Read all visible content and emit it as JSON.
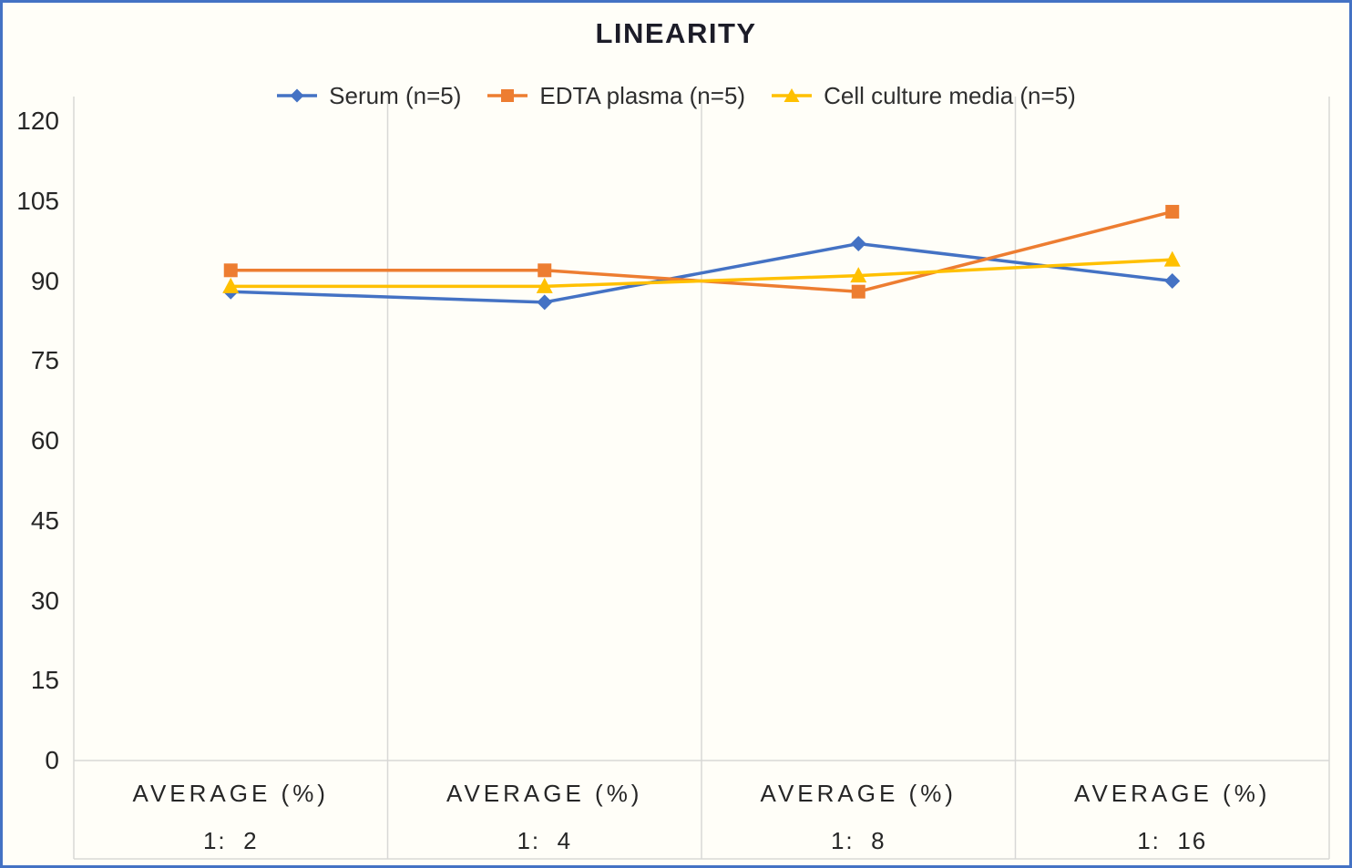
{
  "chart_data": {
    "type": "line",
    "title": "LINEARITY",
    "categories": [
      {
        "line1": "AVERAGE (%)",
        "line2": "1:  2"
      },
      {
        "line1": "AVERAGE (%)",
        "line2": "1:  4"
      },
      {
        "line1": "AVERAGE (%)",
        "line2": "1:  8"
      },
      {
        "line1": "AVERAGE (%)",
        "line2": "1:  16"
      }
    ],
    "series": [
      {
        "name": "Serum (n=5)",
        "color": "#4472C4",
        "marker": "diamond",
        "values": [
          88,
          86,
          97,
          90
        ]
      },
      {
        "name": "EDTA plasma (n=5)",
        "color": "#ED7D31",
        "marker": "square",
        "values": [
          92,
          92,
          88,
          103
        ]
      },
      {
        "name": "Cell culture media (n=5)",
        "color": "#FFC000",
        "marker": "triangle",
        "values": [
          89,
          89,
          91,
          94
        ]
      }
    ],
    "xlabel": "",
    "ylabel": "",
    "ylim": [
      0,
      120
    ],
    "ytick_step": 15,
    "yticks": [
      0,
      15,
      30,
      45,
      60,
      75,
      90,
      105,
      120
    ],
    "grid": "vertical-only",
    "legend_position": "top",
    "colors": {
      "frame_border": "#4472C4",
      "background": "#FFFEF8",
      "gridline": "#D8D8D6",
      "axis_text": "#262626",
      "title_text": "#1c1c28"
    }
  }
}
